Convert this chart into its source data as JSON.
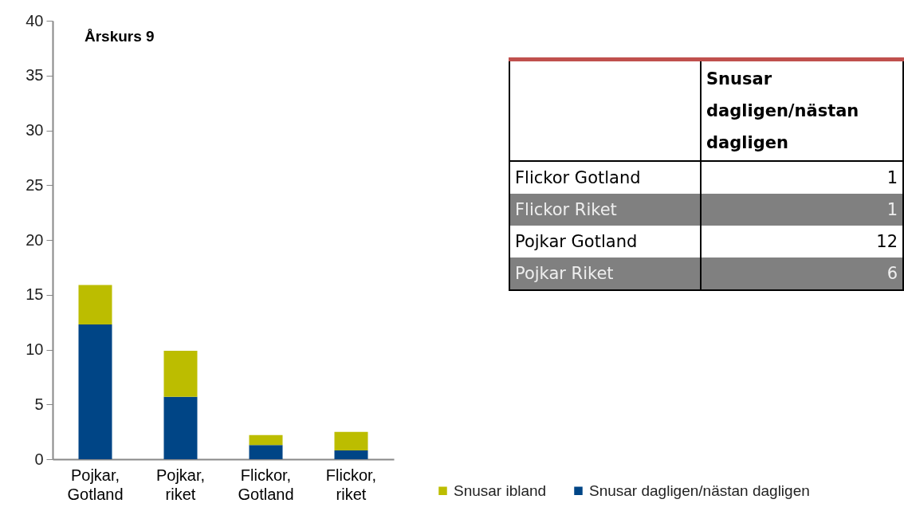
{
  "chart_data": {
    "type": "bar",
    "title": "Årskurs 9",
    "stacked": true,
    "categories": [
      "Pojkar, Gotland",
      "Pojkar, riket",
      "Flickor, Gotland",
      "Flickor, riket"
    ],
    "series": [
      {
        "name": "Snusar dagligen/nästan dagligen",
        "color": "#004586",
        "values": [
          12.3,
          5.7,
          1.3,
          0.8
        ]
      },
      {
        "name": "Snusar ibland",
        "color": "#bcbd00",
        "values": [
          3.6,
          4.2,
          0.9,
          1.7
        ]
      }
    ],
    "ylim": [
      0,
      40
    ],
    "yticks": [
      0,
      5,
      10,
      15,
      20,
      25,
      30,
      35,
      40
    ],
    "grid": false,
    "legend": "bottom right",
    "annotations": [
      "Snusar dagligen/nästan dagligen",
      "Flickor Gotland",
      "1",
      "Flickor Riket",
      "1",
      "Pojkar Gotland",
      "12",
      "Pojkar Riket",
      "6"
    ]
  }
}
